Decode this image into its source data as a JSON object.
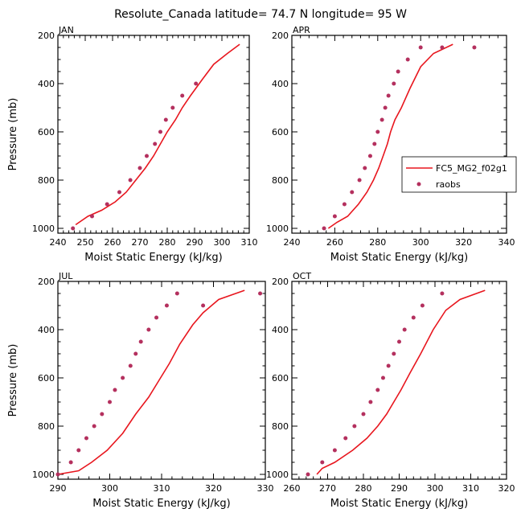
{
  "title": "Resolute_Canada   latitude= 74.7 N longitude= 95 W",
  "legend": {
    "model_label": "FC5_MG2_f02g1",
    "obs_label": "raobs"
  },
  "colors": {
    "model": "#e8161e",
    "obs": "#b4305e",
    "axis": "#000000"
  },
  "chart_data": [
    {
      "type": "line",
      "panel": "JAN",
      "xlabel": "Moist Static Energy (kJ/kg)",
      "ylabel": "Pressure (mb)",
      "xlim": [
        240,
        310
      ],
      "ylim": [
        1020,
        200
      ],
      "xticks": [
        240,
        250,
        260,
        270,
        280,
        290,
        300,
        310
      ],
      "yticks": [
        200,
        400,
        600,
        800,
        1000
      ],
      "series": [
        {
          "name": "FC5_MG2_f02g1",
          "style": "line",
          "x": [
            246.5,
            251,
            256,
            261,
            265,
            268.5,
            272,
            275,
            277.5,
            280,
            283,
            285.5,
            288.5,
            293,
            297,
            302,
            306.5
          ],
          "y": [
            985,
            950,
            925,
            890,
            850,
            800,
            750,
            700,
            650,
            600,
            550,
            500,
            450,
            380,
            320,
            275,
            237
          ]
        },
        {
          "name": "raobs",
          "style": "markers",
          "x": [
            245.5,
            252.5,
            258,
            262.5,
            266.5,
            270,
            272.5,
            275.5,
            277.5,
            279.5,
            282,
            285.5,
            290.5
          ],
          "y": [
            1000,
            950,
            900,
            850,
            800,
            750,
            700,
            650,
            600,
            550,
            500,
            450,
            400
          ]
        }
      ]
    },
    {
      "type": "line",
      "panel": "APR",
      "xlabel": "Moist Static Energy (kJ/kg)",
      "ylabel": "Pressure (mb)",
      "xlim": [
        240,
        340
      ],
      "ylim": [
        1020,
        200
      ],
      "xticks": [
        240,
        260,
        280,
        300,
        320,
        340
      ],
      "yticks": [
        200,
        400,
        600,
        800,
        1000
      ],
      "series": [
        {
          "name": "FC5_MG2_f02g1",
          "style": "line",
          "x": [
            257,
            261,
            266,
            271,
            275,
            278,
            280.5,
            282.5,
            284.5,
            286,
            288,
            291,
            295,
            300,
            306,
            315
          ],
          "y": [
            1000,
            975,
            950,
            900,
            850,
            800,
            750,
            700,
            650,
            600,
            550,
            500,
            420,
            330,
            275,
            237
          ]
        },
        {
          "name": "raobs",
          "style": "markers",
          "x": [
            255,
            260,
            264.5,
            268,
            271.5,
            274,
            276.5,
            278.5,
            280,
            282,
            283.5,
            285,
            287.5,
            289.5,
            294,
            300,
            310,
            325
          ],
          "y": [
            1000,
            950,
            900,
            850,
            800,
            750,
            700,
            650,
            600,
            550,
            500,
            450,
            400,
            350,
            300,
            250,
            250,
            250
          ]
        }
      ]
    },
    {
      "type": "line",
      "panel": "JUL",
      "xlabel": "Moist Static Energy (kJ/kg)",
      "ylabel": "Pressure (mb)",
      "xlim": [
        290,
        330
      ],
      "ylim": [
        1020,
        200
      ],
      "xticks": [
        290,
        300,
        310,
        320,
        330
      ],
      "yticks": [
        200,
        400,
        600,
        800,
        1000
      ],
      "series": [
        {
          "name": "FC5_MG2_f02g1",
          "style": "line",
          "x": [
            290,
            294,
            296.5,
            299.5,
            302.5,
            305,
            307.5,
            309.5,
            311.5,
            313.5,
            316,
            318,
            321,
            326
          ],
          "y": [
            1000,
            985,
            950,
            900,
            830,
            750,
            680,
            610,
            540,
            460,
            380,
            330,
            275,
            237
          ]
        },
        {
          "name": "raobs",
          "style": "markers",
          "x": [
            290,
            292.5,
            294,
            295.5,
            297,
            298.5,
            300,
            301,
            302.5,
            304,
            305,
            306,
            307.5,
            309,
            311,
            313,
            318,
            329
          ],
          "y": [
            1000,
            950,
            900,
            850,
            800,
            750,
            700,
            650,
            600,
            550,
            500,
            450,
            400,
            350,
            300,
            250,
            300,
            250
          ]
        }
      ]
    },
    {
      "type": "line",
      "panel": "OCT",
      "xlabel": "Moist Static Energy (kJ/kg)",
      "ylabel": "Pressure (mb)",
      "xlim": [
        260,
        320
      ],
      "ylim": [
        1020,
        200
      ],
      "xticks": [
        260,
        270,
        280,
        290,
        300,
        310,
        320
      ],
      "yticks": [
        200,
        400,
        600,
        800,
        1000
      ],
      "series": [
        {
          "name": "FC5_MG2_f02g1",
          "style": "line",
          "x": [
            267,
            268.5,
            272,
            277,
            281,
            284,
            286.5,
            288.5,
            290.5,
            293,
            296,
            299.5,
            303,
            307,
            314
          ],
          "y": [
            1000,
            975,
            950,
            900,
            850,
            800,
            750,
            700,
            650,
            580,
            500,
            400,
            320,
            275,
            237
          ]
        },
        {
          "name": "raobs",
          "style": "markers",
          "x": [
            264.5,
            268.5,
            272,
            275,
            277.5,
            280,
            282,
            284,
            285.5,
            287,
            288.5,
            290,
            291.5,
            294,
            296.5,
            302
          ],
          "y": [
            1000,
            950,
            900,
            850,
            800,
            750,
            700,
            650,
            600,
            550,
            500,
            450,
            400,
            350,
            300,
            250
          ]
        }
      ]
    }
  ]
}
